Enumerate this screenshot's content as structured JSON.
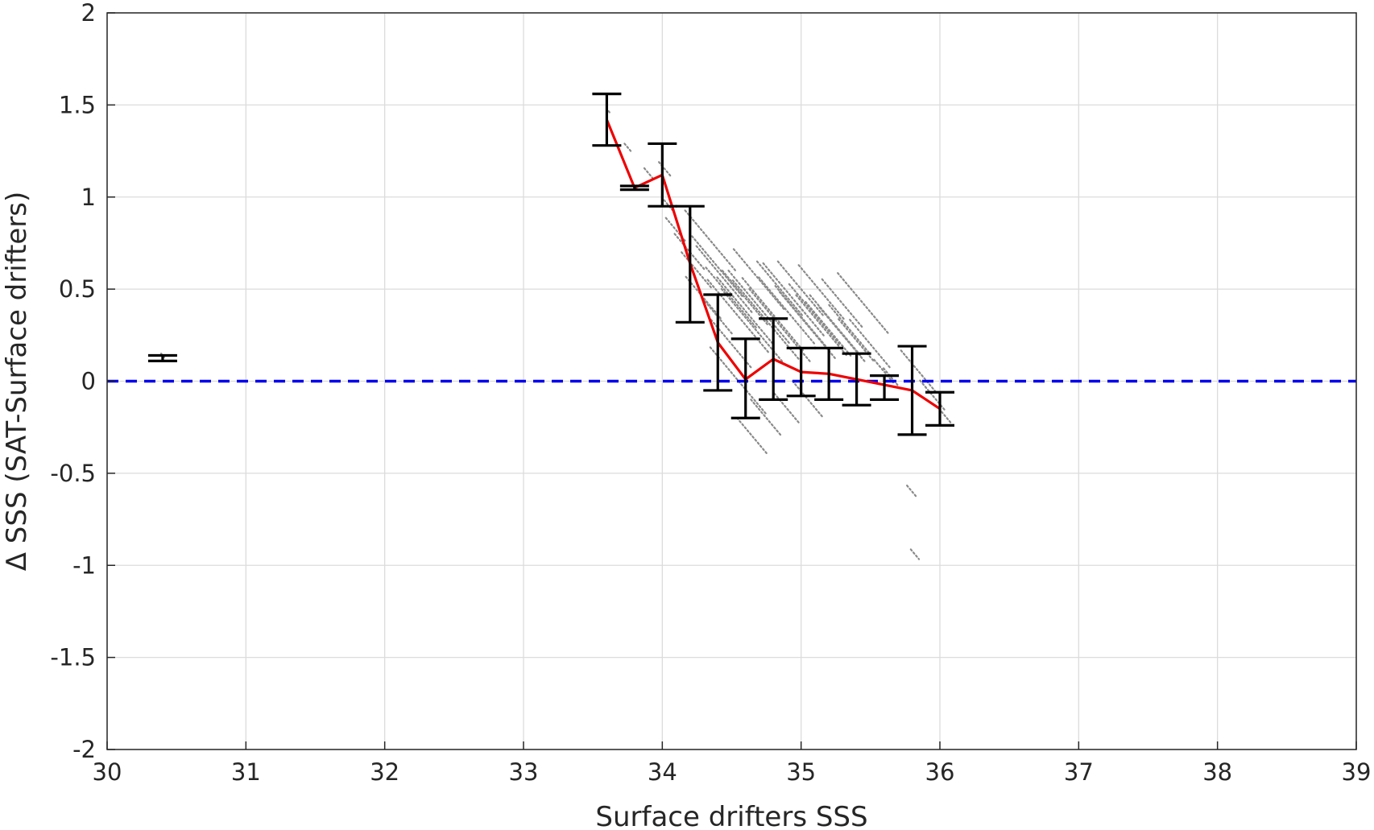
{
  "chart_data": {
    "type": "scatter",
    "xlabel": "Surface drifters SSS",
    "ylabel": "Δ SSS (SAT-Surface drifters)",
    "xlim": [
      30,
      39
    ],
    "ylim": [
      -2,
      2
    ],
    "xticks": [
      30,
      31,
      32,
      33,
      34,
      35,
      36,
      37,
      38,
      39
    ],
    "yticks": [
      -2,
      -1.5,
      -1,
      -0.5,
      0,
      0.5,
      1,
      1.5,
      2
    ],
    "grid": true,
    "reference_line": {
      "y": 0,
      "style": "dashed",
      "color": "#0000ee"
    },
    "colors": {
      "scatter": "#8a8a8a",
      "mean_line": "#ee0000",
      "error_bars": "#000000"
    },
    "series": [
      {
        "type": "errorbar",
        "x": [
          30.4,
          33.6,
          33.8,
          34.0,
          34.2,
          34.4,
          34.6,
          34.8,
          35.0,
          35.2,
          35.4,
          35.6,
          35.8,
          36.0
        ],
        "mean": [
          0.12,
          1.42,
          1.05,
          1.12,
          0.64,
          0.21,
          0.01,
          0.12,
          0.05,
          0.04,
          0.01,
          -0.02,
          -0.05,
          -0.15
        ],
        "lower": [
          0.11,
          1.28,
          1.04,
          0.95,
          0.32,
          -0.05,
          -0.2,
          -0.1,
          -0.08,
          -0.1,
          -0.13,
          -0.1,
          -0.29,
          -0.24
        ],
        "upper": [
          0.14,
          1.56,
          1.06,
          1.29,
          0.95,
          0.47,
          0.23,
          0.34,
          0.18,
          0.18,
          0.15,
          0.03,
          0.19,
          -0.06
        ]
      },
      {
        "type": "line",
        "x": [
          33.6,
          33.8,
          34.0,
          34.2,
          34.4,
          34.6,
          34.8,
          35.0,
          35.2,
          35.4,
          35.6,
          35.8,
          36.0
        ],
        "y": [
          1.42,
          1.05,
          1.12,
          0.64,
          0.21,
          0.01,
          0.12,
          0.05,
          0.04,
          0.01,
          -0.02,
          -0.05,
          -0.15
        ]
      },
      {
        "type": "scatter-streaks",
        "slope": -0.9,
        "segments": [
          [
            30.4,
            0.14,
            0.03
          ],
          [
            33.62,
            1.46,
            0.02
          ],
          [
            33.75,
            1.27,
            0.06
          ],
          [
            33.9,
            1.13,
            0.08
          ],
          [
            34.02,
            1.15,
            0.12
          ],
          [
            34.05,
            0.95,
            0.1
          ],
          [
            34.1,
            0.82,
            0.2
          ],
          [
            34.2,
            0.7,
            0.3
          ],
          [
            34.25,
            0.6,
            0.3
          ],
          [
            34.35,
            0.76,
            0.5
          ],
          [
            34.3,
            0.45,
            0.35
          ],
          [
            34.4,
            0.62,
            0.5
          ],
          [
            34.45,
            0.55,
            0.55
          ],
          [
            34.4,
            0.35,
            0.3
          ],
          [
            34.5,
            0.45,
            0.5
          ],
          [
            34.55,
            0.35,
            0.6
          ],
          [
            34.5,
            0.2,
            0.4
          ],
          [
            34.6,
            0.38,
            0.55
          ],
          [
            34.65,
            0.3,
            0.6
          ],
          [
            34.7,
            0.4,
            0.6
          ],
          [
            34.55,
            0.0,
            0.55
          ],
          [
            34.75,
            0.33,
            0.65
          ],
          [
            34.8,
            0.36,
            0.6
          ],
          [
            34.85,
            0.3,
            0.6
          ],
          [
            34.9,
            0.38,
            0.55
          ],
          [
            34.95,
            0.44,
            0.6
          ],
          [
            35.0,
            0.35,
            0.5
          ],
          [
            35.05,
            0.3,
            0.55
          ],
          [
            35.1,
            0.36,
            0.5
          ],
          [
            35.15,
            0.3,
            0.5
          ],
          [
            35.2,
            0.28,
            0.45
          ],
          [
            35.25,
            0.3,
            0.5
          ],
          [
            35.3,
            0.25,
            0.45
          ],
          [
            35.35,
            0.28,
            0.4
          ],
          [
            35.4,
            0.22,
            0.35
          ],
          [
            35.45,
            0.42,
            0.5
          ],
          [
            35.5,
            0.2,
            0.4
          ],
          [
            35.6,
            0.05,
            0.2
          ],
          [
            35.65,
            0.02,
            0.15
          ],
          [
            35.8,
            -0.6,
            0.1
          ],
          [
            35.82,
            -0.94,
            0.08
          ],
          [
            35.85,
            0.05,
            0.35
          ],
          [
            35.95,
            -0.08,
            0.25
          ],
          [
            36.05,
            -0.2,
            0.1
          ],
          [
            34.65,
            -0.3,
            0.3
          ],
          [
            34.75,
            -0.2,
            0.3
          ],
          [
            34.9,
            -0.15,
            0.25
          ],
          [
            35.05,
            -0.1,
            0.3
          ],
          [
            34.6,
            0.45,
            0.45
          ],
          [
            34.7,
            0.55,
            0.5
          ],
          [
            34.85,
            0.5,
            0.45
          ],
          [
            35.0,
            0.5,
            0.45
          ],
          [
            35.15,
            0.48,
            0.45
          ],
          [
            35.3,
            0.42,
            0.4
          ]
        ]
      }
    ]
  }
}
